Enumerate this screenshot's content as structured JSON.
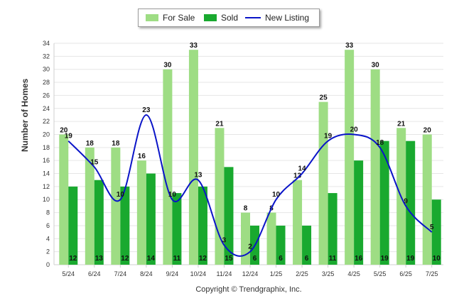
{
  "chart_data": {
    "type": "bar",
    "categories": [
      "5/24",
      "6/24",
      "7/24",
      "8/24",
      "9/24",
      "10/24",
      "11/24",
      "12/24",
      "1/25",
      "2/25",
      "3/25",
      "4/25",
      "5/25",
      "6/25",
      "7/25"
    ],
    "series": [
      {
        "name": "For Sale",
        "type": "bar",
        "color": "#9edd84",
        "values": [
          20,
          18,
          18,
          16,
          30,
          33,
          21,
          8,
          8,
          13,
          25,
          33,
          30,
          21,
          20
        ]
      },
      {
        "name": "Sold",
        "type": "bar",
        "color": "#19a92f",
        "values": [
          12,
          13,
          12,
          14,
          11,
          12,
          15,
          6,
          6,
          6,
          11,
          16,
          19,
          19,
          10
        ]
      },
      {
        "name": "New Listing",
        "type": "line",
        "color": "#0a14c8",
        "values": [
          19,
          15,
          10,
          23,
          10,
          13,
          3,
          2,
          10,
          14,
          19,
          20,
          18,
          9,
          5
        ]
      }
    ],
    "ylabel": "Number of Homes",
    "ylim": [
      0,
      34
    ],
    "yticks": [
      0,
      2,
      4,
      6,
      8,
      10,
      12,
      14,
      16,
      18,
      20,
      22,
      24,
      26,
      28,
      30,
      32,
      34
    ],
    "grid": true,
    "legend_position": "top-center"
  },
  "footer": {
    "copyright": "Copyright © Trendgraphix, Inc."
  }
}
